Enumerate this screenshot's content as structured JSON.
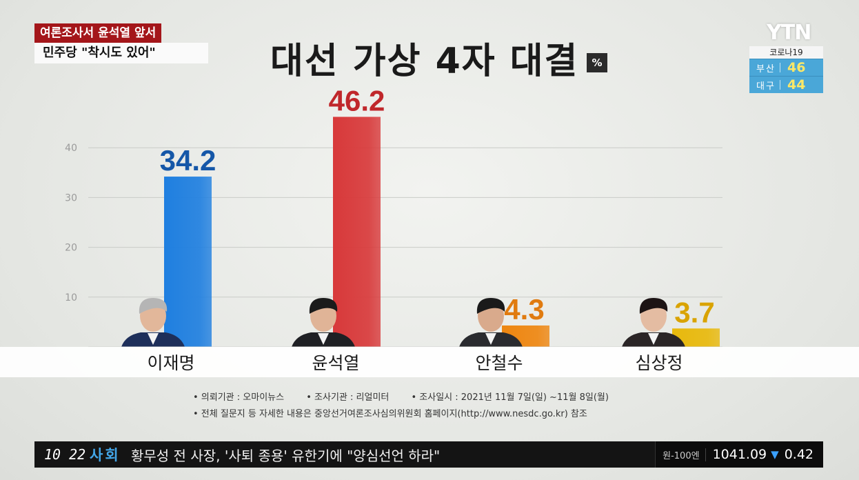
{
  "headline": {
    "line1": "여론조사서 윤석열 앞서",
    "line2": "민주당 \"착시도 있어\""
  },
  "title": "대선 가상 4자 대결",
  "unit": "%",
  "logo": "YTN",
  "covid": {
    "label": "코로나19",
    "rows": [
      {
        "region": "부산",
        "value": "46"
      },
      {
        "region": "대구",
        "value": "44"
      }
    ]
  },
  "chart_data": {
    "type": "bar",
    "title": "대선 가상 4자 대결",
    "unit": "%",
    "categories": [
      "이재명",
      "윤석열",
      "안철수",
      "심상정"
    ],
    "values": [
      34.2,
      46.2,
      4.3,
      3.7
    ],
    "value_labels": [
      "34.2",
      "46.2",
      "4.3",
      "3.7"
    ],
    "bar_colors": [
      "#1f7fe0",
      "#d8393a",
      "#ee8610",
      "#e8b90c"
    ],
    "label_colors": [
      "#1557a8",
      "#c0272b",
      "#e07b10",
      "#d9a300"
    ],
    "yticks": [
      "10",
      "20",
      "30",
      "40"
    ],
    "ylim": [
      0,
      50
    ],
    "grid": true
  },
  "notes": {
    "sponsor": "• 의뢰기관 : 오마이뉴스",
    "pollster": "• 조사기관 : 리얼미터",
    "dates": "• 조사일시 : 2021년 11월 7일(일) ~11월 8일(월)",
    "detail": "• 전체 질문지 등 자세한 내용은 중앙선거여론조사심의위원회 홈페이지(http://www.nesdc.go.kr) 참조"
  },
  "ticker": {
    "time": "10 22",
    "category": "사회",
    "news": "황무성 전 사장, '사퇴 종용' 유한기에 \"양심선언 하라\"",
    "fx_pair": "원-100엔",
    "fx_value": "1041.09",
    "fx_arrow": "▼",
    "fx_change": "0.42"
  }
}
